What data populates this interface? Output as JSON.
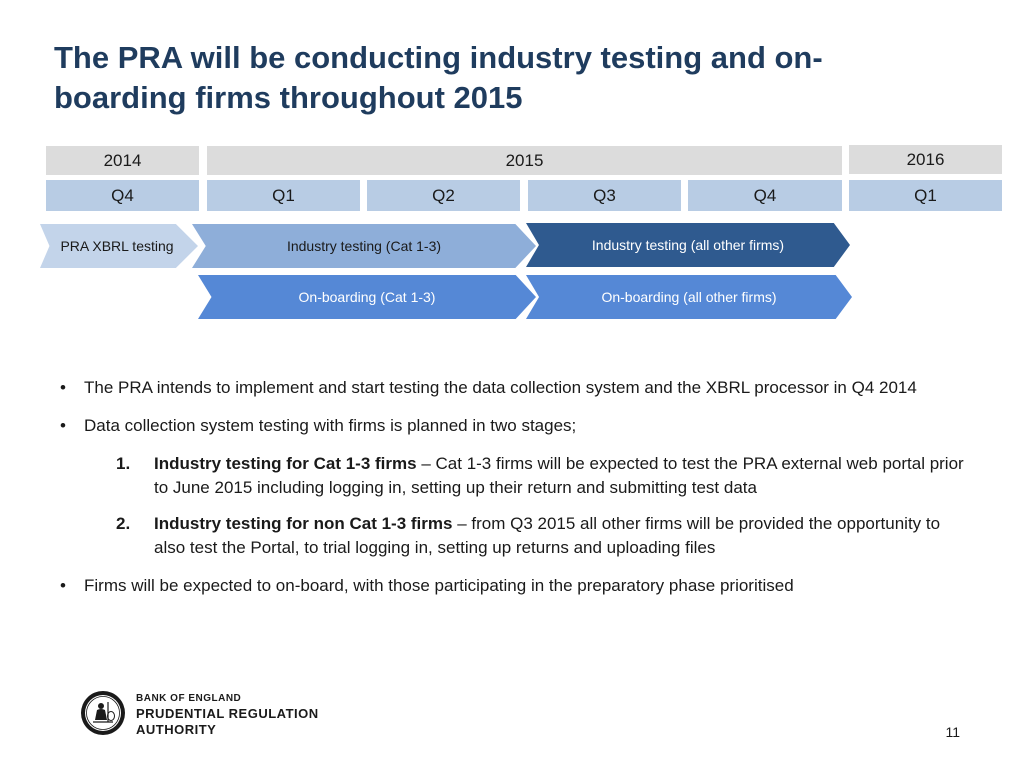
{
  "title": "The PRA will be conducting industry testing and on-boarding firms throughout 2015",
  "timeline": {
    "years": [
      {
        "label": "2014"
      },
      {
        "label": "2015"
      },
      {
        "label": "2016"
      }
    ],
    "quarters": [
      {
        "label": "Q4"
      },
      {
        "label": "Q1"
      },
      {
        "label": "Q2"
      },
      {
        "label": "Q3"
      },
      {
        "label": "Q4"
      },
      {
        "label": "Q1"
      }
    ],
    "phases": {
      "xbrl": "PRA XBRL testing",
      "industry_cat13": "Industry testing (Cat 1-3)",
      "industry_all": "Industry testing (all other firms)",
      "onboarding_cat13": "On-boarding (Cat 1-3)",
      "onboarding_all": "On-boarding (all other firms)"
    },
    "colors": {
      "year_bg": "#dcdcdc",
      "quarter_bg": "#b8cce4",
      "xbrl": "#c3d4ea",
      "industry_cat13": "#8eaed9",
      "industry_all": "#2f5a8f",
      "onboarding": "#5588d6"
    }
  },
  "bullets": {
    "marker": "•",
    "b1": "The PRA intends to implement and start testing the data collection system and the XBRL processor in Q4 2014",
    "b2": "Data collection system testing with firms is planned in two stages;",
    "n1_num": "1.",
    "n1_bold": "Industry testing for Cat 1-3 firms",
    "n1_text": " – Cat 1-3 firms will be expected to test the PRA external web portal prior to June 2015 including logging in, setting up their return and submitting test data",
    "n2_num": "2.",
    "n2_bold": "Industry testing for non Cat 1-3 firms",
    "n2_text": " – from Q3 2015 all other firms will be provided the opportunity to also test the Portal, to trial logging in, setting up returns and uploading files",
    "b3": "Firms will be expected to on-board, with those participating in the preparatory phase prioritised"
  },
  "footer": {
    "logo_line1": "BANK OF ENGLAND",
    "logo_line2": "PRUDENTIAL REGULATION",
    "logo_line3": "AUTHORITY",
    "logo_icon": "britannia-seal-icon",
    "page_number": "11"
  }
}
